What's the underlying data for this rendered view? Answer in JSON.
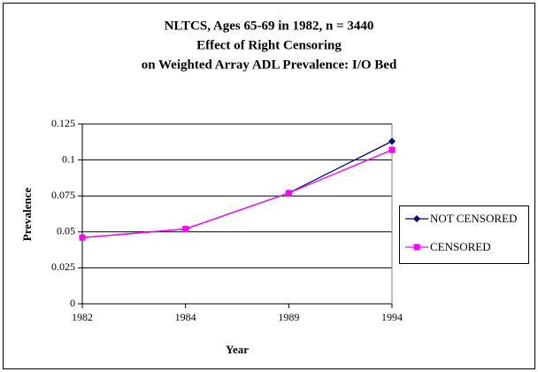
{
  "chart_data": {
    "type": "line",
    "title": [
      "NLTCS, Ages 65-69 in 1982, n = 3440",
      "Effect of Right Censoring",
      "on Weighted Array ADL Prevalence: I/O Bed"
    ],
    "x_label": "Year",
    "y_label": "Prevalence",
    "categories": [
      "1982",
      "1984",
      "1989",
      "1994"
    ],
    "series": [
      {
        "name": "NOT CENSORED",
        "color": "#000080",
        "marker": "diamond",
        "values": [
          0.046,
          0.052,
          0.077,
          0.113
        ]
      },
      {
        "name": "CENSORED",
        "color": "#ff00ff",
        "marker": "square",
        "values": [
          0.046,
          0.052,
          0.077,
          0.107
        ]
      }
    ],
    "ylim": [
      0,
      0.125
    ],
    "yticks": [
      0,
      0.025,
      0.05,
      0.075,
      0.1,
      0.125
    ],
    "grid": true,
    "legend": "right"
  }
}
